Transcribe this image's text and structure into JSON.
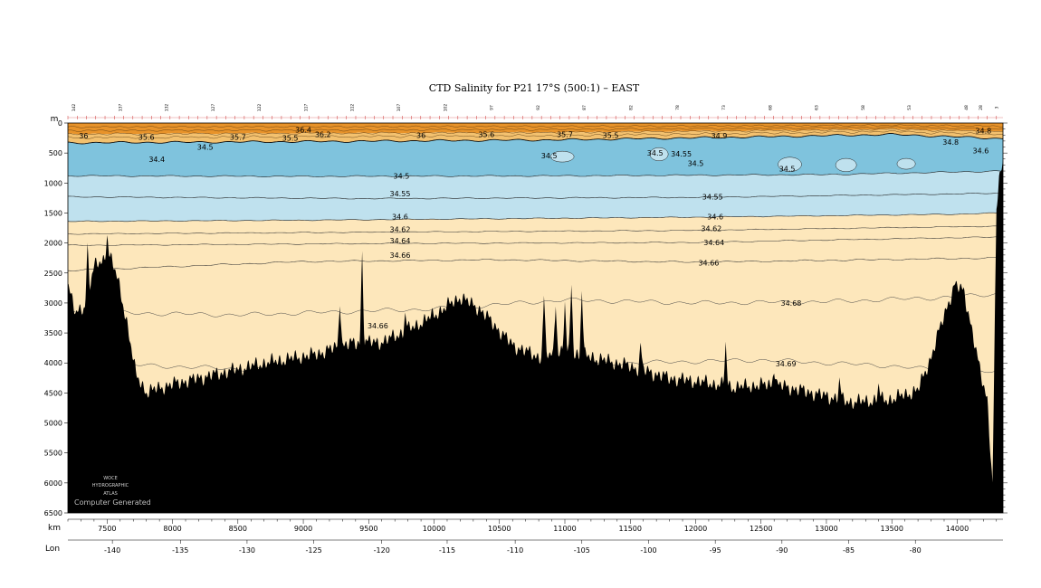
{
  "chart_data": {
    "type": "contour-section",
    "title": "CTD Salinity for P21 17°S (500:1) – EAST",
    "x_axis_label": "km",
    "y_axis_label": "m",
    "lon_axis_label": "Lon",
    "xlim": [
      7200,
      14350
    ],
    "ylim": [
      6500,
      0
    ],
    "x_ticks": [
      7500,
      8000,
      8500,
      9000,
      9500,
      10000,
      10500,
      11000,
      11500,
      12000,
      12500,
      13000,
      13500,
      14000
    ],
    "y_ticks": [
      0,
      500,
      1000,
      1500,
      2000,
      2500,
      3000,
      3500,
      4000,
      4500,
      5000,
      5500,
      6000,
      6500
    ],
    "lon_ticks": [
      {
        "lon": -140,
        "km": 7540
      },
      {
        "lon": -135,
        "km": 8060
      },
      {
        "lon": -130,
        "km": 8570
      },
      {
        "lon": -125,
        "km": 9080
      },
      {
        "lon": -120,
        "km": 9600
      },
      {
        "lon": -115,
        "km": 10100
      },
      {
        "lon": -110,
        "km": 10620
      },
      {
        "lon": -105,
        "km": 11130
      },
      {
        "lon": -100,
        "km": 11640
      },
      {
        "lon": -95,
        "km": 12150
      },
      {
        "lon": -90,
        "km": 12660
      },
      {
        "lon": -85,
        "km": 13170
      },
      {
        "lon": -80,
        "km": 13680
      }
    ],
    "stations": [
      {
        "label": "142",
        "km": 7245
      },
      {
        "label": "137",
        "km": 7600
      },
      {
        "label": "132",
        "km": 7955
      },
      {
        "label": "127",
        "km": 8310
      },
      {
        "label": "122",
        "km": 8665
      },
      {
        "label": "117",
        "km": 9020
      },
      {
        "label": "112",
        "km": 9375
      },
      {
        "label": "107",
        "km": 9730
      },
      {
        "label": "102",
        "km": 10085
      },
      {
        "label": "97",
        "km": 10440
      },
      {
        "label": "92",
        "km": 10795
      },
      {
        "label": "87",
        "km": 11150
      },
      {
        "label": "82",
        "km": 11505
      },
      {
        "label": "78",
        "km": 11860
      },
      {
        "label": "73",
        "km": 12215
      },
      {
        "label": "68",
        "km": 12570
      },
      {
        "label": "63",
        "km": 12925
      },
      {
        "label": "58",
        "km": 13280
      },
      {
        "label": "53",
        "km": 13635
      },
      {
        "label": "48",
        "km": 14070
      },
      {
        "label": "28",
        "km": 14180
      },
      {
        "label": "3",
        "km": 14300
      }
    ],
    "colors": {
      "surface_dark": "#e8932a",
      "surface_light": "#f3c16f",
      "fresh_core": "#7fc3dd",
      "intermediate": "#bfe1ee",
      "deep": "#fde7bb",
      "bathymetry": "#000000"
    },
    "contour_labels": [
      {
        "text": "36.4",
        "km": 9000,
        "depth": 110
      },
      {
        "text": "36",
        "km": 7320,
        "depth": 210
      },
      {
        "text": "35.6",
        "km": 7800,
        "depth": 230
      },
      {
        "text": "35.7",
        "km": 8500,
        "depth": 230
      },
      {
        "text": "35.5",
        "km": 8900,
        "depth": 250
      },
      {
        "text": "36.2",
        "km": 9150,
        "depth": 190
      },
      {
        "text": "36",
        "km": 9900,
        "depth": 200
      },
      {
        "text": "35.6",
        "km": 10400,
        "depth": 190
      },
      {
        "text": "35.7",
        "km": 11000,
        "depth": 190
      },
      {
        "text": "35.5",
        "km": 11350,
        "depth": 200
      },
      {
        "text": "34.9",
        "km": 12180,
        "depth": 210
      },
      {
        "text": "34.8",
        "km": 14200,
        "depth": 130
      },
      {
        "text": "34.5",
        "km": 8250,
        "depth": 400
      },
      {
        "text": "34.4",
        "km": 7880,
        "depth": 600
      },
      {
        "text": "34.5",
        "km": 10880,
        "depth": 540
      },
      {
        "text": "34.5",
        "km": 11690,
        "depth": 500
      },
      {
        "text": "34.55",
        "km": 11890,
        "depth": 510
      },
      {
        "text": "34.5",
        "km": 12000,
        "depth": 670
      },
      {
        "text": "34.5",
        "km": 12700,
        "depth": 760
      },
      {
        "text": "34.8",
        "km": 13950,
        "depth": 320
      },
      {
        "text": "34.6",
        "km": 14180,
        "depth": 460
      },
      {
        "text": "34.5",
        "km": 9750,
        "depth": 880
      },
      {
        "text": "34.55",
        "km": 9740,
        "depth": 1180
      },
      {
        "text": "34.55",
        "km": 12130,
        "depth": 1230
      },
      {
        "text": "34.6",
        "km": 9740,
        "depth": 1560
      },
      {
        "text": "34.6",
        "km": 12150,
        "depth": 1560
      },
      {
        "text": "34.62",
        "km": 9740,
        "depth": 1770
      },
      {
        "text": "34.62",
        "km": 12120,
        "depth": 1760
      },
      {
        "text": "34.64",
        "km": 9740,
        "depth": 1960
      },
      {
        "text": "34.64",
        "km": 12140,
        "depth": 1990
      },
      {
        "text": "34.66",
        "km": 9740,
        "depth": 2200
      },
      {
        "text": "34.66",
        "km": 12100,
        "depth": 2330
      },
      {
        "text": "34.68",
        "km": 12730,
        "depth": 3000
      },
      {
        "text": "34.66",
        "km": 9570,
        "depth": 3380
      },
      {
        "text": "34.69",
        "km": 12690,
        "depth": 4010
      }
    ],
    "watermark": [
      "WOCE",
      "HYDROGRAPHIC",
      "ATLAS"
    ],
    "watermark_caption": "Computer Generated"
  }
}
